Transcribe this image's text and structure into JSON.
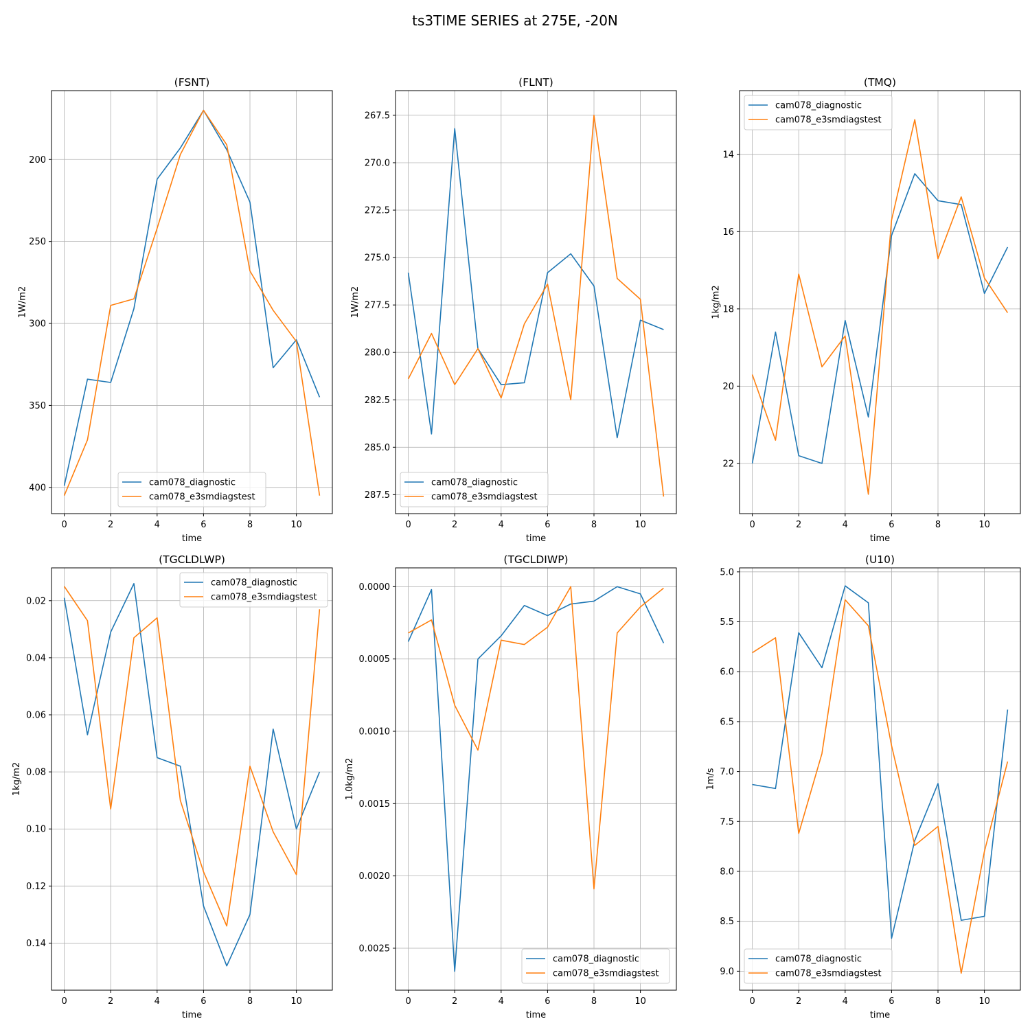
{
  "figure": {
    "suptitle": "ts3TIME SERIES at 275E, -20N"
  },
  "colors": {
    "cam078_diagnostic": "#1f77b4",
    "cam078_e3smdiagstest": "#ff7f0e"
  },
  "chart_data": [
    {
      "type": "line",
      "title": "(FSNT)",
      "xlabel": "time",
      "ylabel": "1W/m2",
      "x": [
        0,
        1,
        2,
        3,
        4,
        5,
        6,
        7,
        8,
        9,
        10,
        11
      ],
      "xlim": [
        -0.55,
        11.55
      ],
      "ylim": [
        416,
        158
      ],
      "inverted_y": true,
      "xticks": [
        0,
        2,
        4,
        6,
        8,
        10
      ],
      "yticks": [
        200,
        250,
        300,
        350,
        400
      ],
      "ytick_labels": [
        "200",
        "250",
        "300",
        "350",
        "400"
      ],
      "grid": true,
      "legend": "lower center",
      "series": [
        {
          "name": "cam078_diagnostic",
          "values": [
            399,
            334,
            336,
            291,
            212,
            193,
            170,
            194,
            226,
            327,
            310,
            345
          ]
        },
        {
          "name": "cam078_e3smdiagstest",
          "values": [
            405,
            371,
            289,
            285,
            242,
            197,
            170,
            191,
            268,
            292,
            311,
            405
          ]
        }
      ]
    },
    {
      "type": "line",
      "title": "(FLNT)",
      "xlabel": "time",
      "ylabel": "1W/m2",
      "x": [
        0,
        1,
        2,
        3,
        4,
        5,
        6,
        7,
        8,
        9,
        10,
        11
      ],
      "xlim": [
        -0.55,
        11.55
      ],
      "ylim": [
        288.5,
        266.2
      ],
      "inverted_y": true,
      "xticks": [
        0,
        2,
        4,
        6,
        8,
        10
      ],
      "yticks": [
        267.5,
        270.0,
        272.5,
        275.0,
        277.5,
        280.0,
        282.5,
        285.0,
        287.5
      ],
      "ytick_labels": [
        "267.5",
        "270.0",
        "272.5",
        "275.0",
        "277.5",
        "280.0",
        "282.5",
        "285.0",
        "287.5"
      ],
      "grid": true,
      "legend": "lower left",
      "series": [
        {
          "name": "cam078_diagnostic",
          "values": [
            275.8,
            284.3,
            268.2,
            279.8,
            281.7,
            281.6,
            275.8,
            274.8,
            276.5,
            284.5,
            278.3,
            278.8
          ]
        },
        {
          "name": "cam078_e3smdiagstest",
          "values": [
            281.4,
            279.0,
            281.7,
            279.8,
            282.4,
            278.5,
            276.4,
            282.5,
            267.5,
            276.1,
            277.2,
            287.6
          ]
        }
      ]
    },
    {
      "type": "line",
      "title": "(TMQ)",
      "xlabel": "time",
      "ylabel": "1kg/m2",
      "x": [
        0,
        1,
        2,
        3,
        4,
        5,
        6,
        7,
        8,
        9,
        10,
        11
      ],
      "xlim": [
        -0.55,
        11.55
      ],
      "ylim": [
        23.3,
        12.35
      ],
      "inverted_y": true,
      "xticks": [
        0,
        2,
        4,
        6,
        8,
        10
      ],
      "yticks": [
        14,
        16,
        18,
        20,
        22
      ],
      "ytick_labels": [
        "14",
        "16",
        "18",
        "20",
        "22"
      ],
      "grid": true,
      "legend": "upper left",
      "series": [
        {
          "name": "cam078_diagnostic",
          "values": [
            22.0,
            18.6,
            21.8,
            22.0,
            18.3,
            20.8,
            16.1,
            14.5,
            15.2,
            15.3,
            17.6,
            16.4
          ]
        },
        {
          "name": "cam078_e3smdiagstest",
          "values": [
            19.7,
            21.4,
            17.1,
            19.5,
            18.7,
            22.8,
            15.7,
            13.1,
            16.7,
            15.1,
            17.2,
            18.1
          ]
        }
      ]
    },
    {
      "type": "line",
      "title": "(TGCLDLWP)",
      "xlabel": "time",
      "ylabel": "1kg/m2",
      "x": [
        0,
        1,
        2,
        3,
        4,
        5,
        6,
        7,
        8,
        9,
        10,
        11
      ],
      "xlim": [
        -0.55,
        11.55
      ],
      "ylim": [
        0.1565,
        0.0085
      ],
      "inverted_y": true,
      "xticks": [
        0,
        2,
        4,
        6,
        8,
        10
      ],
      "yticks": [
        0.02,
        0.04,
        0.06,
        0.08,
        0.1,
        0.12,
        0.14
      ],
      "ytick_labels": [
        "0.02",
        "0.04",
        "0.06",
        "0.08",
        "0.10",
        "0.12",
        "0.14"
      ],
      "grid": true,
      "legend": "upper right",
      "series": [
        {
          "name": "cam078_diagnostic",
          "values": [
            0.019,
            0.067,
            0.031,
            0.014,
            0.075,
            0.078,
            0.127,
            0.148,
            0.13,
            0.065,
            0.1,
            0.08
          ]
        },
        {
          "name": "cam078_e3smdiagstest",
          "values": [
            0.015,
            0.027,
            0.093,
            0.033,
            0.026,
            0.09,
            0.115,
            0.134,
            0.078,
            0.101,
            0.116,
            0.023
          ]
        }
      ]
    },
    {
      "type": "line",
      "title": "(TGCLDIWP)",
      "xlabel": "time",
      "ylabel": "1.0kg/m2",
      "x": [
        0,
        1,
        2,
        3,
        4,
        5,
        6,
        7,
        8,
        9,
        10,
        11
      ],
      "xlim": [
        -0.55,
        11.55
      ],
      "ylim": [
        0.00279,
        -0.00013
      ],
      "inverted_y": true,
      "xticks": [
        0,
        2,
        4,
        6,
        8,
        10
      ],
      "yticks": [
        0.0,
        0.0005,
        0.001,
        0.0015,
        0.002,
        0.0025
      ],
      "ytick_labels": [
        "0.0000",
        "0.0005",
        "0.0010",
        "0.0015",
        "0.0020",
        "0.0025"
      ],
      "grid": true,
      "legend": "lower right",
      "series": [
        {
          "name": "cam078_diagnostic",
          "values": [
            0.00038,
            2e-05,
            0.00266,
            0.0005,
            0.00034,
            0.00013,
            0.0002,
            0.00012,
            0.0001,
            0.0,
            5e-05,
            0.00039
          ]
        },
        {
          "name": "cam078_e3smdiagstest",
          "values": [
            0.00032,
            0.00023,
            0.00082,
            0.00113,
            0.00037,
            0.0004,
            0.00028,
            0.0,
            0.00209,
            0.00032,
            0.00014,
            1e-05
          ]
        }
      ]
    },
    {
      "type": "line",
      "title": "(U10)",
      "xlabel": "time",
      "ylabel": "1m/s",
      "x": [
        0,
        1,
        2,
        3,
        4,
        5,
        6,
        7,
        8,
        9,
        10,
        11
      ],
      "xlim": [
        -0.55,
        11.55
      ],
      "ylim": [
        9.19,
        4.96
      ],
      "inverted_y": true,
      "xticks": [
        0,
        2,
        4,
        6,
        8,
        10
      ],
      "yticks": [
        5.0,
        5.5,
        6.0,
        6.5,
        7.0,
        7.5,
        8.0,
        8.5,
        9.0
      ],
      "ytick_labels": [
        "5.0",
        "5.5",
        "6.0",
        "6.5",
        "7.0",
        "7.5",
        "8.0",
        "8.5",
        "9.0"
      ],
      "grid": true,
      "legend": "lower left",
      "series": [
        {
          "name": "cam078_diagnostic",
          "values": [
            7.13,
            7.17,
            5.61,
            5.96,
            5.14,
            5.31,
            8.67,
            7.69,
            7.12,
            8.49,
            8.45,
            6.38
          ]
        },
        {
          "name": "cam078_e3smdiagstest",
          "values": [
            5.81,
            5.66,
            7.62,
            6.82,
            5.28,
            5.54,
            6.74,
            7.74,
            7.55,
            9.02,
            7.8,
            6.9
          ]
        }
      ]
    }
  ]
}
